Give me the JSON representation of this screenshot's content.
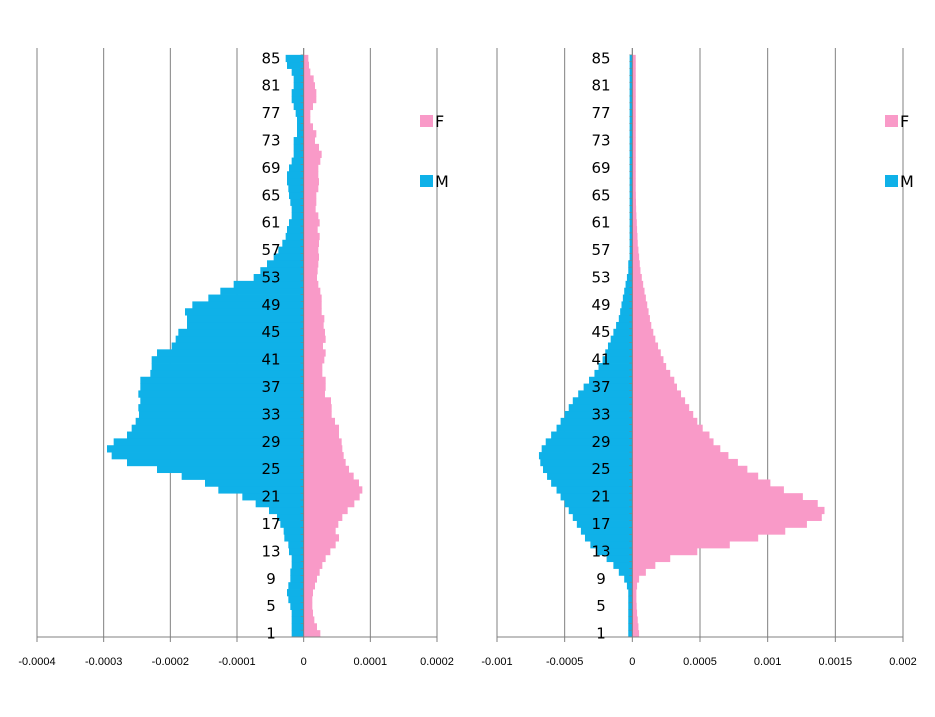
{
  "colors": {
    "female": "#f99ac8",
    "male": "#0fb1e8",
    "grid": "#808080",
    "axis": "#808080"
  },
  "chart_data": [
    {
      "type": "bar",
      "orientation": "horizontal-population-pyramid",
      "title": "",
      "xlabel": "",
      "ylabel": "",
      "xlim": [
        -0.0004,
        0.0002
      ],
      "ylim": [
        1,
        86
      ],
      "x_ticks": [
        -0.0004,
        -0.0003,
        -0.0002,
        -0.0001,
        0,
        0.0001,
        0.0002
      ],
      "x_tick_labels": [
        "-0.0004",
        "-0.0003",
        "-0.0002",
        "-0.0001",
        "0",
        "0.0001",
        "0.0002"
      ],
      "y_tick_labels": [
        "1",
        "5",
        "9",
        "13",
        "17",
        "21",
        "25",
        "29",
        "33",
        "37",
        "41",
        "45",
        "49",
        "53",
        "57",
        "61",
        "65",
        "69",
        "73",
        "77",
        "81",
        "85"
      ],
      "grid": "vertical major gridlines",
      "legend": {
        "position": "right",
        "entries": [
          "F",
          "M"
        ]
      },
      "age_start": 1,
      "series": [
        {
          "name": "F",
          "values": [
            2.5e-05,
            2e-05,
            1.6e-05,
            1.4e-05,
            1.3e-05,
            1.3e-05,
            1.4e-05,
            1.7e-05,
            2e-05,
            2.4e-05,
            2.8e-05,
            3.3e-05,
            4e-05,
            4.8e-05,
            5.3e-05,
            4.8e-05,
            5.2e-05,
            5.8e-05,
            6.6e-05,
            7.6e-05,
            8.4e-05,
            8.8e-05,
            8.3e-05,
            7.5e-05,
            6.8e-05,
            6.3e-05,
            6e-05,
            5.8e-05,
            5.7e-05,
            5.3e-05,
            5.3e-05,
            4.7e-05,
            4.2e-05,
            4.2e-05,
            4.1e-05,
            3.2e-05,
            3.3e-05,
            3.3e-05,
            2.8e-05,
            2.8e-05,
            3.1e-05,
            3.3e-05,
            2.9e-05,
            3.3e-05,
            3.2e-05,
            3e-05,
            3.1e-05,
            2.7e-05,
            2.7e-05,
            2.7e-05,
            2.5e-05,
            2.2e-05,
            2e-05,
            2.1e-05,
            2.2e-05,
            2.3e-05,
            2.2e-05,
            2.3e-05,
            2.4e-05,
            2.1e-05,
            2.4e-05,
            2.2e-05,
            1.8e-05,
            1.9e-05,
            1.9e-05,
            2.2e-05,
            2.3e-05,
            2.2e-05,
            2.2e-05,
            2.5e-05,
            2.7e-05,
            2.3e-05,
            1.7e-05,
            1.9e-05,
            1.4e-05,
            1e-05,
            1e-05,
            1.4e-05,
            1.9e-05,
            1.9e-05,
            1.7e-05,
            1.5e-05,
            1e-05,
            8e-06,
            7e-06
          ]
        },
        {
          "name": "M",
          "values": [
            -1.8e-05,
            -1.8e-05,
            -1.8e-05,
            -1.8e-05,
            -2e-05,
            -2.3e-05,
            -2.5e-05,
            -2.3e-05,
            -2e-05,
            -2e-05,
            -1.8e-05,
            -1.8e-05,
            -2.2e-05,
            -2.3e-05,
            -2.9e-05,
            -3e-05,
            -3.5e-05,
            -4e-05,
            -5.2e-05,
            -7.2e-05,
            -9.2e-05,
            -0.000128,
            -0.000148,
            -0.000183,
            -0.00022,
            -0.000265,
            -0.000288,
            -0.000295,
            -0.000285,
            -0.000265,
            -0.000258,
            -0.000252,
            -0.000247,
            -0.000248,
            -0.000245,
            -0.000248,
            -0.000245,
            -0.000245,
            -0.00023,
            -0.000228,
            -0.000228,
            -0.00022,
            -0.000198,
            -0.000192,
            -0.000188,
            -0.000175,
            -0.000175,
            -0.000178,
            -0.000167,
            -0.000143,
            -0.000125,
            -0.000105,
            -7.5e-05,
            -6.5e-05,
            -5.5e-05,
            -4.5e-05,
            -3.8e-05,
            -3.2e-05,
            -2.7e-05,
            -2.5e-05,
            -2.2e-05,
            -1.8e-05,
            -1.8e-05,
            -2e-05,
            -2.2e-05,
            -2.3e-05,
            -2.5e-05,
            -2.5e-05,
            -2.2e-05,
            -1.8e-05,
            -1.5e-05,
            -1.5e-05,
            -1.5e-05,
            -1e-05,
            -1e-05,
            -1e-05,
            -1.2e-05,
            -1.5e-05,
            -1.8e-05,
            -1.8e-05,
            -1.5e-05,
            -1.5e-05,
            -1.8e-05,
            -2.5e-05,
            -2.7e-05
          ]
        }
      ]
    },
    {
      "type": "bar",
      "orientation": "horizontal-population-pyramid",
      "title": "",
      "xlabel": "",
      "ylabel": "",
      "xlim": [
        -0.001,
        0.002
      ],
      "ylim": [
        1,
        86
      ],
      "x_ticks": [
        -0.001,
        -0.0005,
        0,
        0.0005,
        0.001,
        0.0015,
        0.002
      ],
      "x_tick_labels": [
        "-0.001",
        "-0.0005",
        "0",
        "0.0005",
        "0.001",
        "0.0015",
        "0.002"
      ],
      "y_tick_labels": [
        "1",
        "5",
        "9",
        "13",
        "17",
        "21",
        "25",
        "29",
        "33",
        "37",
        "41",
        "45",
        "49",
        "53",
        "57",
        "61",
        "65",
        "69",
        "73",
        "77",
        "81",
        "85"
      ],
      "grid": "vertical major gridlines",
      "legend": {
        "position": "right",
        "entries": [
          "F",
          "M"
        ]
      },
      "age_start": 1,
      "series": [
        {
          "name": "F",
          "values": [
            5e-05,
            4.5e-05,
            4e-05,
            3.5e-05,
            3.2e-05,
            3e-05,
            3e-05,
            3.5e-05,
            5e-05,
            0.0001,
            0.00017,
            0.00028,
            0.00048,
            0.00072,
            0.00093,
            0.00113,
            0.00129,
            0.0014,
            0.00142,
            0.00137,
            0.00126,
            0.00112,
            0.00102,
            0.00093,
            0.00085,
            0.00078,
            0.00071,
            0.00065,
            0.0006,
            0.00057,
            0.00052,
            0.00048,
            0.00045,
            0.00042,
            0.00039,
            0.00036,
            0.00033,
            0.00031,
            0.00028,
            0.00025,
            0.00023,
            0.00021,
            0.00019,
            0.00017,
            0.000155,
            0.00014,
            0.00013,
            0.00012,
            0.00011,
            0.0001,
            9e-05,
            8e-05,
            7e-05,
            6e-05,
            5.5e-05,
            5e-05,
            4.5e-05,
            4e-05,
            3.8e-05,
            3.5e-05,
            3.3e-05,
            3e-05,
            2.8e-05,
            2.7e-05,
            2.6e-05,
            2.5e-05,
            2.5e-05,
            2.5e-05,
            2.5e-05,
            2.5e-05,
            2.5e-05,
            2.5e-05,
            2.5e-05,
            2.5e-05,
            2.5e-05,
            2.5e-05,
            2.5e-05,
            2.5e-05,
            2.5e-05,
            2.5e-05,
            2.5e-05,
            2.5e-05,
            2.5e-05,
            2.5e-05,
            2.5e-05
          ]
        },
        {
          "name": "M",
          "values": [
            -3e-05,
            -3e-05,
            -3e-05,
            -3e-05,
            -3e-05,
            -3e-05,
            -3e-05,
            -4e-05,
            -6e-05,
            -0.0001,
            -0.00014,
            -0.00019,
            -0.00026,
            -0.00031,
            -0.00035,
            -0.00038,
            -0.00041,
            -0.00044,
            -0.00047,
            -0.0005,
            -0.00053,
            -0.00056,
            -0.0006,
            -0.00063,
            -0.00066,
            -0.00068,
            -0.00069,
            -0.00067,
            -0.00064,
            -0.0006,
            -0.00056,
            -0.00053,
            -0.0005,
            -0.00047,
            -0.00044,
            -0.0004,
            -0.00036,
            -0.00032,
            -0.00028,
            -0.00025,
            -0.00022,
            -0.0002,
            -0.00018,
            -0.00016,
            -0.00014,
            -0.00012,
            -0.0001,
            -9e-05,
            -8e-05,
            -7e-05,
            -6e-05,
            -5e-05,
            -4e-05,
            -3e-05,
            -3e-05,
            -2e-05,
            -2e-05,
            -2e-05,
            -2e-05,
            -2e-05,
            -2e-05,
            -2e-05,
            -2e-05,
            -2e-05,
            -2e-05,
            -2e-05,
            -2e-05,
            -2e-05,
            -2e-05,
            -2e-05,
            -2e-05,
            -2e-05,
            -2e-05,
            -2e-05,
            -2e-05,
            -2e-05,
            -2e-05,
            -2e-05,
            -2e-05,
            -2e-05,
            -2e-05,
            -2e-05,
            -2e-05,
            -2e-05,
            -2e-05
          ]
        }
      ]
    }
  ]
}
